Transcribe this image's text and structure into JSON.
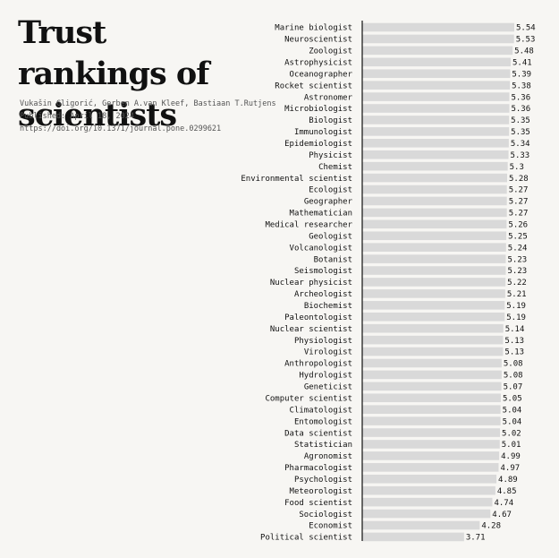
{
  "title": "Trust rankings of scientists",
  "authors": "Vukašin Gligorić, Gerben A.van Kleef, Bastiaan T.Rutjens",
  "published": "Published: April 18, 2024",
  "doi": "https://doi.org/10.1371/journal.pone.0299621",
  "chart_data": {
    "type": "bar",
    "orientation": "horizontal",
    "title": "Trust rankings of scientists",
    "categories": [
      "Marine biologist",
      "Neuroscientist",
      "Zoologist",
      "Astrophysicist",
      "Oceanographer",
      "Rocket scientist",
      "Astronomer",
      "Microbiologist",
      "Biologist",
      "Immunologist",
      "Epidemiologist",
      "Physicist",
      "Chemist",
      "Environmental scientist",
      "Ecologist",
      "Geographer",
      "Mathematician",
      "Medical researcher",
      "Geologist",
      "Volcanologist",
      "Botanist",
      "Seismologist",
      "Nuclear physicist",
      "Archeologist",
      "Biochemist",
      "Paleontologist",
      "Nuclear scientist",
      "Physiologist",
      "Virologist",
      "Anthropologist",
      "Hydrologist",
      "Geneticist",
      "Computer scientist",
      "Climatologist",
      "Entomologist",
      "Data scientist",
      "Statistician",
      "Agronomist",
      "Pharmacologist",
      "Psychologist",
      "Meteorologist",
      "Food scientist",
      "Sociologist",
      "Economist",
      "Political scientist"
    ],
    "values": [
      5.54,
      5.53,
      5.48,
      5.41,
      5.39,
      5.38,
      5.36,
      5.36,
      5.35,
      5.35,
      5.34,
      5.33,
      5.3,
      5.28,
      5.27,
      5.27,
      5.27,
      5.26,
      5.25,
      5.24,
      5.23,
      5.23,
      5.22,
      5.21,
      5.19,
      5.19,
      5.14,
      5.13,
      5.13,
      5.08,
      5.08,
      5.07,
      5.05,
      5.04,
      5.04,
      5.02,
      5.01,
      4.99,
      4.97,
      4.89,
      4.85,
      4.74,
      4.67,
      4.28,
      3.71
    ],
    "value_labels": [
      "5.54",
      "5.53",
      "5.48",
      "5.41",
      "5.39",
      "5.38",
      "5.36",
      "5.36",
      "5.35",
      "5.35",
      "5.34",
      "5.33",
      "5.3",
      "5.28",
      "5.27",
      "5.27",
      "5.27",
      "5.26",
      "5.25",
      "5.24",
      "5.23",
      "5.23",
      "5.22",
      "5.21",
      "5.19",
      "5.19",
      "5.14",
      "5.13",
      "5.13",
      "5.08",
      "5.08",
      "5.07",
      "5.05",
      "5.04",
      "5.04",
      "5.02",
      "5.01",
      "4.99",
      "4.97",
      "4.89",
      "4.85",
      "4.74",
      "4.67",
      "4.28",
      "3.71"
    ],
    "xlim": [
      0,
      7.3
    ],
    "grid": false,
    "legend": "none",
    "bar_color": "#d9d9d9",
    "axis_color": "#111111"
  }
}
